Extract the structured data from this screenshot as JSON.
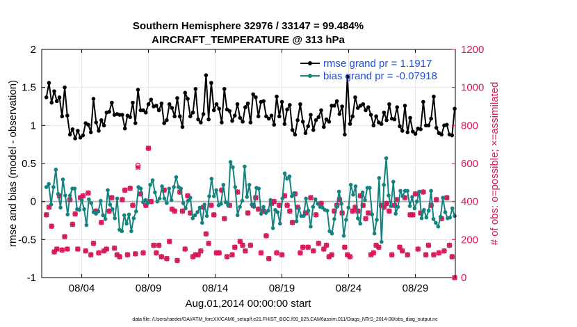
{
  "chart_data": {
    "type": "line",
    "title": "Southern Hemisphere 32976 / 33147 = 99.484%",
    "subtitle": "AIRCRAFT_TEMPERATURE @ 313 hPa",
    "xlabel": "Aug.01,2014 00:00:00 start",
    "ylabel": "rmse and bias (model - observation)",
    "ylabel_right": "# of obs: o=possible; ×=assimilated",
    "xlim": [
      0.5,
      31.5
    ],
    "ylim": [
      -1,
      2
    ],
    "ylim_right": [
      0,
      1200
    ],
    "x_ticks": [
      {
        "x": 3.5,
        "label": "08/04"
      },
      {
        "x": 8.5,
        "label": "08/09"
      },
      {
        "x": 13.5,
        "label": "08/14"
      },
      {
        "x": 18.5,
        "label": "08/19"
      },
      {
        "x": 23.5,
        "label": "08/24"
      },
      {
        "x": 28.5,
        "label": "08/29"
      }
    ],
    "y_ticks": [
      "-1",
      "-0.5",
      "0",
      "0.5",
      "1",
      "1.5",
      "2"
    ],
    "y_ticks_right": [
      "0",
      "200",
      "400",
      "600",
      "800",
      "1000",
      "1200"
    ],
    "grid": true,
    "legend": [
      {
        "label": "rmse grand pr = 1.1917",
        "color": "#000000"
      },
      {
        "label": "bias grand pr = -0.07918",
        "color": "#14827f"
      }
    ],
    "legend_position": "top-right",
    "footnote": "data file: /Users/raeder/DAI/ATM_forcXX/CAM6_setup/f.e21.FHIST_BGC.f09_025.CAM6assim.011/Diags_NTrS_2014-08/obs_diag_output.nc",
    "colors": {
      "rmse": "#000000",
      "bias": "#14827f",
      "obs": "#d6165a",
      "zero": "#b4b4b4",
      "grid": "#e4e4e4",
      "legend_text": "#1f4fd6"
    },
    "series": [
      {
        "name": "rmse",
        "values": [
          1.37,
          1.56,
          1.3,
          1.45,
          1.32,
          1.37,
          1.12,
          1.5,
          1.13,
          0.88,
          0.95,
          0.83,
          0.93,
          0.84,
          0.87,
          1.03,
          1.01,
          0.91,
          1.35,
          1.04,
          0.93,
          1.07,
          1.0,
          1.17,
          1.18,
          1.3,
          1.14,
          1.15,
          1.14,
          1.14,
          0.96,
          1.13,
          1.11,
          1.3,
          1.03,
          1.47,
          1.2,
          1.2,
          1.17,
          1.28,
          1.34,
          1.25,
          1.26,
          1.2,
          1.29,
          1.03,
          1.07,
          1.28,
          1.23,
          1.12,
          1.36,
          1.12,
          0.98,
          1.43,
          1.35,
          1.12,
          1.17,
          1.48,
          1.08,
          1.04,
          1.15,
          1.66,
          1.08,
          1.56,
          1.2,
          1.28,
          1.22,
          1.04,
          1.48,
          1.21,
          1.19,
          1.06,
          1.13,
          1.28,
          1.1,
          1.05,
          1.24,
          1.29,
          1.04,
          1.41,
          1.37,
          1.12,
          1.31,
          1.32,
          1.12,
          1.09,
          1.13,
          1.01,
          1.38,
          1.12,
          1.31,
          1.02,
          1.21,
          1.27,
          0.94,
          0.88,
          1.07,
          1.28,
          1.05,
          0.9,
          0.99,
          1.14,
          0.94,
          1.07,
          1.11,
          1.2,
          0.98,
          1.08,
          1.05,
          1.26,
          1.26,
          1.32,
          1.15,
          1.25,
          0.88,
          1.64,
          1.02,
          1.12,
          1.37,
          1.23,
          1.26,
          1.28,
          1.2,
          1.24,
          1.14,
          1.0,
          1.12,
          1.04,
          1.02,
          1.17,
          1.07,
          1.28,
          1.09,
          1.08,
          1.24,
          0.99,
          0.93,
          1.26,
          0.91,
          1.1,
          0.92,
          0.89,
          0.96,
          0.95,
          1.31,
          1.0,
          1.0,
          1.09,
          1.38,
          0.97,
          0.9,
          0.88,
          1.0,
          1.01,
          0.88,
          0.87,
          1.22
        ]
      },
      {
        "name": "bias",
        "values": [
          0.19,
          0.23,
          -0.04,
          0.19,
          0.42,
          0.1,
          -0.08,
          0.29,
          0.08,
          -0.17,
          0.08,
          0.17,
          0.17,
          -0.1,
          -0.11,
          0.02,
          -0.1,
          -0.31,
          0.03,
          -0.02,
          -0.14,
          -0.16,
          -0.13,
          0.01,
          -0.18,
          -0.23,
          0.15,
          -0.04,
          -0.1,
          -0.22,
          0.04,
          -0.37,
          -0.39,
          -0.18,
          -0.29,
          -0.17,
          -0.39,
          -0.22,
          -0.13,
          0.19,
          0.17,
          -0.01,
          0.02,
          -0.02,
          0.22,
          0.28,
          0.12,
          -0.0,
          0.04,
          0.2,
          0.04,
          -0.02,
          0.17,
          0.02,
          0.19,
          0.32,
          0.19,
          0.17,
          -0.02,
          -0.09,
          0.01,
          0.05,
          -0.22,
          -0.18,
          -0.14,
          -0.08,
          -0.28,
          -0.04,
          -0.19,
          0.07,
          0.3,
          0.07,
          0.15,
          -0.05,
          -0.03,
          0.22,
          -0.01,
          -0.05,
          0.52,
          0.45,
          0.19,
          -0.18,
          -0.07,
          0.01,
          0.46,
          0.06,
          0.22,
          -0.04,
          -0.07,
          0.18,
          0.17,
          -0.16,
          -0.07,
          -0.15,
          -0.12,
          0.02,
          -0.35,
          -0.11,
          -0.14,
          -0.29,
          0.04,
          0.37,
          0.3,
          0.33,
          0.07,
          0.11,
          -0.26,
          -0.09,
          -0.19,
          -0.19,
          0.04,
          -0.12,
          -0.33,
          -0.07,
          0.03,
          -0.03,
          -0.07,
          -0.08,
          -0.11,
          -0.12,
          -0.39,
          -0.42,
          -0.23,
          -0.07,
          0.13,
          -0.03,
          -0.45,
          -0.24,
          -0.08,
          0.22,
          0.09,
          0.2,
          -0.22,
          -0.29,
          0.12,
          0.02,
          0.18,
          0.18,
          -0.17,
          -0.42,
          -0.24,
          0.31,
          -0.53,
          0.22,
          0.57,
          0.08,
          -0.06,
          0.26,
          -0.16,
          -0.07,
          0.14,
          0.07,
          0.14,
          0.14,
          -0.06,
          0.06,
          -0.09,
          0.0,
          0.13,
          -0.22,
          -0.11,
          -0.21,
          -0.12,
          0.14,
          -0.23,
          -0.28,
          -0.33,
          -0.2,
          0.05,
          -0.14,
          -0.22,
          -0.21,
          -0.09,
          -0.19
        ]
      }
    ],
    "obs_possible": [
      330,
      370,
      270,
      135,
      150,
      430,
      145,
      215,
      150,
      410,
      280,
      335,
      150,
      420,
      430,
      140,
      445,
      120,
      180,
      350,
      130,
      290,
      140,
      150,
      350,
      420,
      155,
      120,
      110,
      410,
      460,
      120,
      470,
      380,
      125,
      590,
      440,
      130,
      380,
      680,
      400,
      170,
      130,
      170,
      110,
      460,
      100,
      190,
      360,
      350,
      90,
      450,
      350,
      150,
      430,
      340,
      110,
      120,
      120,
      140,
      370,
      230,
      180,
      380,
      330,
      130,
      130,
      460,
      310,
      110,
      380,
      120,
      160,
      450,
      190,
      170,
      140,
      340,
      170,
      380,
      420,
      360,
      130,
      350,
      220,
      100,
      390,
      400,
      130,
      380,
      120,
      430,
      380,
      350,
      290,
      440,
      370,
      130,
      160,
      340,
      160,
      420,
      140,
      330,
      180,
      390,
      150,
      170,
      110,
      120,
      350,
      380,
      410,
      340,
      160,
      120,
      110,
      350,
      370,
      350,
      430,
      380,
      310,
      340,
      120,
      130,
      170,
      160,
      380,
      370,
      390,
      350,
      120,
      380,
      410,
      160,
      140,
      420,
      120,
      330,
      330,
      440,
      150,
      340,
      450,
      120,
      170,
      380,
      120,
      410,
      130,
      310,
      140,
      420,
      170,
      110,
      0
    ],
    "obs_assimilated": [
      330,
      370,
      270,
      135,
      150,
      430,
      145,
      215,
      150,
      410,
      280,
      335,
      150,
      420,
      430,
      140,
      445,
      120,
      180,
      350,
      130,
      290,
      140,
      150,
      350,
      420,
      155,
      120,
      110,
      410,
      460,
      120,
      470,
      380,
      125,
      580,
      440,
      130,
      380,
      680,
      400,
      170,
      130,
      170,
      110,
      460,
      100,
      190,
      360,
      350,
      90,
      450,
      350,
      150,
      430,
      340,
      110,
      120,
      120,
      140,
      370,
      230,
      180,
      380,
      330,
      130,
      130,
      460,
      310,
      110,
      380,
      120,
      160,
      450,
      190,
      170,
      140,
      340,
      170,
      380,
      420,
      360,
      130,
      350,
      220,
      100,
      390,
      400,
      130,
      380,
      120,
      430,
      380,
      350,
      290,
      440,
      370,
      130,
      160,
      340,
      160,
      420,
      140,
      330,
      180,
      390,
      150,
      170,
      110,
      120,
      350,
      380,
      410,
      340,
      160,
      120,
      110,
      350,
      370,
      350,
      430,
      380,
      310,
      340,
      120,
      130,
      170,
      160,
      380,
      370,
      390,
      350,
      120,
      380,
      410,
      160,
      140,
      420,
      120,
      330,
      330,
      440,
      150,
      340,
      450,
      120,
      170,
      380,
      120,
      410,
      130,
      310,
      140,
      420,
      170,
      110,
      0
    ]
  }
}
